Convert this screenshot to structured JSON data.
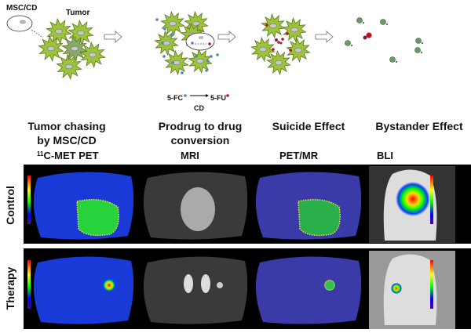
{
  "schematic": {
    "msc_label": "MSC/CD",
    "tumor_label": "Tumor",
    "reaction": {
      "substrate": "5-FC",
      "product": "5-FU",
      "enzyme": "CD"
    },
    "steps": [
      {
        "line1": "Tumor chasing",
        "line2": "by MSC/CD"
      },
      {
        "line1": "Prodrug to drug",
        "line2": "conversion"
      },
      {
        "line1": "Suicide Effect",
        "line2": ""
      },
      {
        "line1": "Bystander Effect",
        "line2": ""
      }
    ]
  },
  "imaging": {
    "columns": [
      {
        "sup": "11",
        "label": "C-MET PET"
      },
      {
        "sup": "",
        "label": "MRI"
      },
      {
        "sup": "",
        "label": "PET/MR"
      },
      {
        "sup": "",
        "label": "BLI"
      }
    ],
    "rows": [
      "Control",
      "Therapy"
    ]
  },
  "colors": {
    "tumor": "#9dc23c",
    "prodrug": "#4a86c5",
    "drug": "#c0101a",
    "background_panel": "#000000"
  }
}
